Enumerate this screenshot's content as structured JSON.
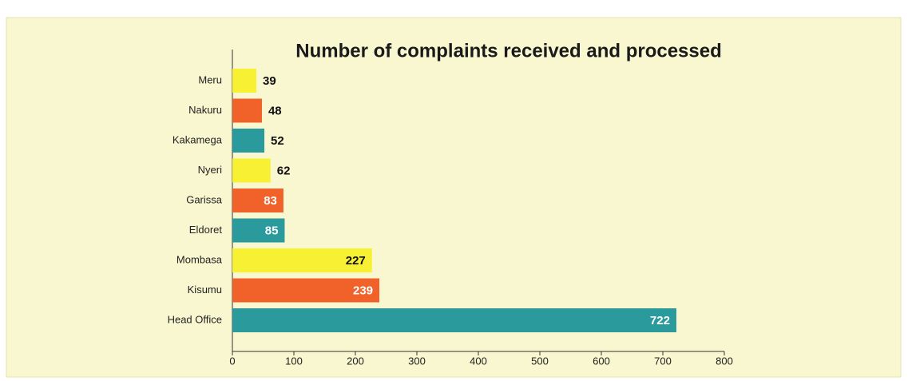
{
  "chart_data": {
    "type": "barh",
    "title": "Number of complaints received and processed",
    "categories": [
      "Meru",
      "Nakuru",
      "Kakamega",
      "Nyeri",
      "Garissa",
      "Eldoret",
      "Mombasa",
      "Kisumu",
      "Head Office"
    ],
    "values": [
      39,
      48,
      52,
      62,
      83,
      85,
      227,
      239,
      722
    ],
    "colors": [
      "#f8f032",
      "#f0622a",
      "#2a9a9c",
      "#f8f032",
      "#f0622a",
      "#2a9a9c",
      "#f8f032",
      "#f0622a",
      "#2a9a9c"
    ],
    "xlim": [
      0,
      800
    ],
    "xticks": [
      0,
      100,
      200,
      300,
      400,
      500,
      600,
      700,
      800
    ]
  }
}
